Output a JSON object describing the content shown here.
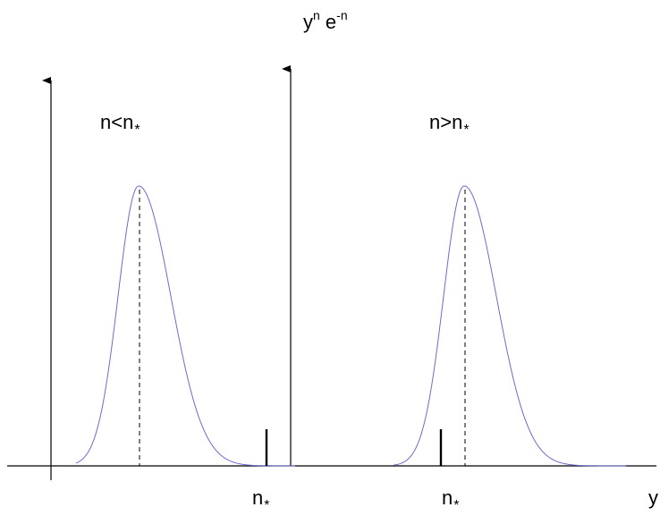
{
  "title": {
    "base": "y",
    "base_exp": "n",
    "factor": "e",
    "factor_exp": "-n"
  },
  "regions": [
    {
      "label_main": "n<n",
      "label_star": "*"
    },
    {
      "label_main": "n>n",
      "label_star": "*"
    }
  ],
  "tick_labels": [
    {
      "main": "n",
      "star": "*"
    },
    {
      "main": "n",
      "star": "*"
    }
  ],
  "x_axis_label": "y",
  "colors": {
    "curve": "#6b6bd0",
    "axis": "#000000"
  }
}
